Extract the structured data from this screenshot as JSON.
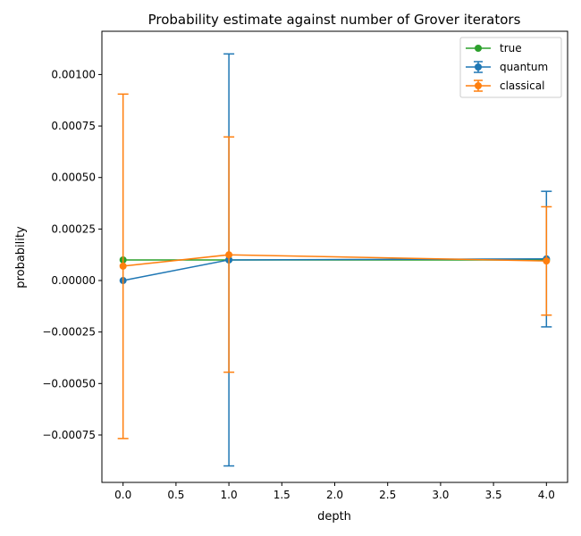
{
  "chart_data": {
    "type": "line",
    "title": "Probability estimate against number of Grover iterators",
    "xlabel": "depth",
    "ylabel": "probability",
    "xlim": [
      -0.2,
      4.2
    ],
    "ylim": [
      -0.00098,
      0.00121
    ],
    "x_ticks": [
      0.0,
      0.5,
      1.0,
      1.5,
      2.0,
      2.5,
      3.0,
      3.5,
      4.0
    ],
    "x_tick_labels": [
      "0.0",
      "0.5",
      "1.0",
      "1.5",
      "2.0",
      "2.5",
      "3.0",
      "3.5",
      "4.0"
    ],
    "y_ticks": [
      -0.00075,
      -0.0005,
      -0.00025,
      0.0,
      0.00025,
      0.0005,
      0.00075,
      0.001
    ],
    "y_tick_labels": [
      "−0.00075",
      "−0.00050",
      "−0.00025",
      "0.00000",
      "0.00025",
      "0.00050",
      "0.00075",
      "0.00100"
    ],
    "grid": false,
    "legend_position": "top-right",
    "series": [
      {
        "name": "true",
        "color": "#2ca02c",
        "x": [
          0,
          1,
          4
        ],
        "y": [
          0.0001,
          0.0001,
          0.0001
        ],
        "err": null
      },
      {
        "name": "quantum",
        "color": "#1f77b4",
        "x": [
          0,
          1,
          4
        ],
        "y": [
          0.0,
          0.0001,
          0.000105
        ],
        "err": [
          [
            0.0,
            0.0
          ],
          [
            -0.0009,
            0.0011
          ],
          [
            -0.000225,
            0.000433
          ]
        ]
      },
      {
        "name": "classical",
        "color": "#ff7f0e",
        "x": [
          0,
          1,
          4
        ],
        "y": [
          7e-05,
          0.000125,
          9.5e-05
        ],
        "err": [
          [
            -0.000767,
            0.000905
          ],
          [
            -0.000445,
            0.000697
          ],
          [
            -0.000168,
            0.000358
          ]
        ]
      }
    ]
  }
}
